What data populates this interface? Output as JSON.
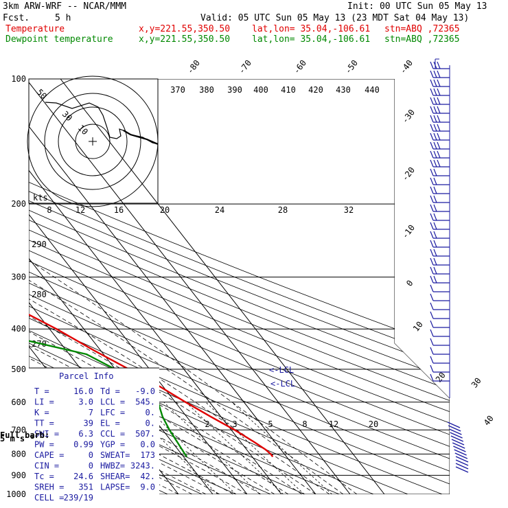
{
  "header": {
    "model": "3km ARW-WRF -- NCAR/MMM",
    "init": "Init: 00 UTC Sun 05 May 13",
    "fcst_label": "Fcst.",
    "fcst_value": "5 h",
    "valid": "Valid: 05 UTC Sun 05 May 13 (23 MDT Sat 04 May 13)",
    "temp_label": "Temperature",
    "dew_label": "Dewpoint temperature",
    "xy": "x,y=221.55,350.50",
    "latlon": "lat,lon= 35.04,-106.61",
    "stn": "stn=ABQ ,72365",
    "colors": {
      "temperature": "#e00000",
      "dewpoint": "#008800",
      "grid": "#000000",
      "panel": "#1a1aa0"
    }
  },
  "chart_data": {
    "type": "line",
    "title": "",
    "xlabel": "",
    "ylabel": "",
    "pressure_levels": [
      "100",
      "200",
      "300",
      "400",
      "500",
      "600",
      "700",
      "800",
      "900",
      "1000"
    ],
    "isotherm_labels": [
      "-80",
      "-70",
      "-60",
      "-50",
      "-40",
      "-30",
      "-20",
      "-10",
      "0",
      "10",
      "20",
      "30",
      "40"
    ],
    "theta_labels": [
      "370",
      "380",
      "390",
      "400",
      "410",
      "420",
      "430",
      "440"
    ],
    "left_theta_labels": [
      "290",
      "280",
      "270"
    ],
    "mixing_ratio_labels": [
      "2",
      "3",
      "5",
      "8",
      "12",
      "20"
    ],
    "hodo_speed_labels": [
      "8",
      "12",
      "16",
      "20",
      "24",
      "28",
      "32"
    ],
    "hodo_ring_labels": [
      "50",
      "30",
      "10"
    ],
    "hodo_units": "kts",
    "barb_legend": [
      "Full barb:",
      "5 m s⁻¹"
    ],
    "lcl_labels": [
      "<-LCL",
      "<-LCL"
    ],
    "series": [
      {
        "name": "Temperature",
        "points": [
          [
            100,
            -42
          ],
          [
            130,
            -41
          ],
          [
            150,
            -44
          ],
          [
            175,
            -50
          ],
          [
            200,
            -56
          ],
          [
            250,
            -48
          ],
          [
            300,
            -36
          ],
          [
            350,
            -26
          ],
          [
            400,
            -18
          ],
          [
            450,
            -12
          ],
          [
            500,
            -6
          ],
          [
            550,
            -1
          ],
          [
            600,
            3
          ],
          [
            650,
            7
          ],
          [
            700,
            11
          ],
          [
            750,
            14
          ],
          [
            780,
            15.5
          ],
          [
            800,
            16
          ],
          [
            812,
            16
          ]
        ]
      },
      {
        "name": "Dewpoint temperature",
        "points": [
          [
            100,
            -78
          ],
          [
            130,
            -80
          ],
          [
            160,
            -84
          ],
          [
            200,
            -84
          ],
          [
            250,
            -73
          ],
          [
            300,
            -56
          ],
          [
            350,
            -48
          ],
          [
            380,
            -40
          ],
          [
            420,
            -32
          ],
          [
            460,
            -15
          ],
          [
            500,
            -10
          ],
          [
            550,
            -4
          ],
          [
            600,
            -5
          ],
          [
            650,
            -7
          ],
          [
            700,
            -8
          ],
          [
            750,
            -8.5
          ],
          [
            800,
            -9
          ],
          [
            812,
            -9
          ]
        ]
      }
    ],
    "winds": [
      {
        "p": 110,
        "dir": 270,
        "spd": 45
      },
      {
        "p": 150,
        "dir": 270,
        "spd": 45
      },
      {
        "p": 200,
        "dir": 265,
        "spd": 40
      },
      {
        "p": 250,
        "dir": 265,
        "spd": 35
      },
      {
        "p": 300,
        "dir": 260,
        "spd": 30
      },
      {
        "p": 350,
        "dir": 255,
        "spd": 25
      },
      {
        "p": 400,
        "dir": 250,
        "spd": 20
      },
      {
        "p": 450,
        "dir": 245,
        "spd": 15
      },
      {
        "p": 500,
        "dir": 240,
        "spd": 10
      }
    ],
    "hodograph": [
      [
        0.9,
        0.2
      ],
      [
        0.55,
        0.12
      ],
      [
        0.45,
        0.0
      ],
      [
        0.35,
        -0.12
      ],
      [
        0.15,
        -0.32
      ],
      [
        -0.15,
        -0.4
      ],
      [
        -0.35,
        -0.42
      ],
      [
        -0.5,
        -0.47
      ],
      [
        -0.62,
        -0.55
      ],
      [
        -0.75,
        -0.45
      ]
    ],
    "grid": true
  },
  "parcel": {
    "title": "Parcel Info",
    "rows": [
      [
        "T  =",
        "16.0",
        "Td =",
        "-9.0"
      ],
      [
        "LI =",
        "3.0",
        "LCL =",
        "545."
      ],
      [
        "K  =",
        "7",
        "LFC =",
        "0."
      ],
      [
        "TT =",
        "39",
        "EL  =",
        "0."
      ],
      [
        "SWI =",
        "6.3",
        "CCL =",
        "507."
      ],
      [
        "PW  =",
        "0.99",
        "YGP =",
        "0.0"
      ],
      [
        "CAPE =",
        "0",
        "SWEAT=",
        "173"
      ],
      [
        "CIN  =",
        "0",
        "HWBZ=",
        "3243."
      ],
      [
        "Tc   =",
        "24.6",
        "SHEAR=",
        "42."
      ],
      [
        "SREH =",
        "351",
        "LAPSE=",
        "9.0"
      ],
      [
        "CELL =",
        "239/19",
        "",
        ""
      ]
    ]
  }
}
